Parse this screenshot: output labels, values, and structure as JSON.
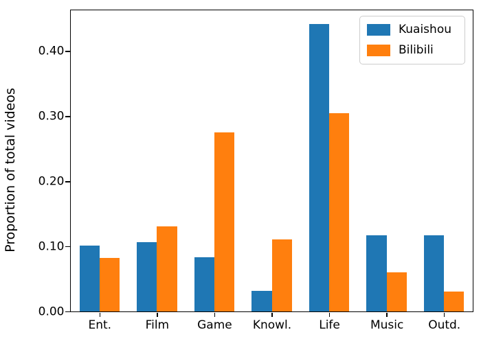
{
  "chart": {
    "ylabel": "Proportion of total videos"
  },
  "chart_data": {
    "type": "bar",
    "title": "",
    "xlabel": "",
    "ylabel": "Proportion of total videos",
    "categories": [
      "Ent.",
      "Film",
      "Game",
      "Knowl.",
      "Life",
      "Music",
      "Outd."
    ],
    "series": [
      {
        "name": "Kuaishou",
        "color": "#1f77b4",
        "values": [
          0.101,
          0.107,
          0.083,
          0.032,
          0.442,
          0.117,
          0.117
        ]
      },
      {
        "name": "Bilibili",
        "color": "#ff7f0e",
        "values": [
          0.082,
          0.131,
          0.275,
          0.111,
          0.305,
          0.06,
          0.031
        ]
      }
    ],
    "yticks": [
      "0.00",
      "0.10",
      "0.20",
      "0.30",
      "0.40"
    ],
    "ytick_values": [
      0.0,
      0.1,
      0.2,
      0.3,
      0.4
    ],
    "ylim": [
      0,
      0.463
    ],
    "bar_width_fraction": 0.35,
    "grid": false,
    "legend_position": "upper right"
  }
}
